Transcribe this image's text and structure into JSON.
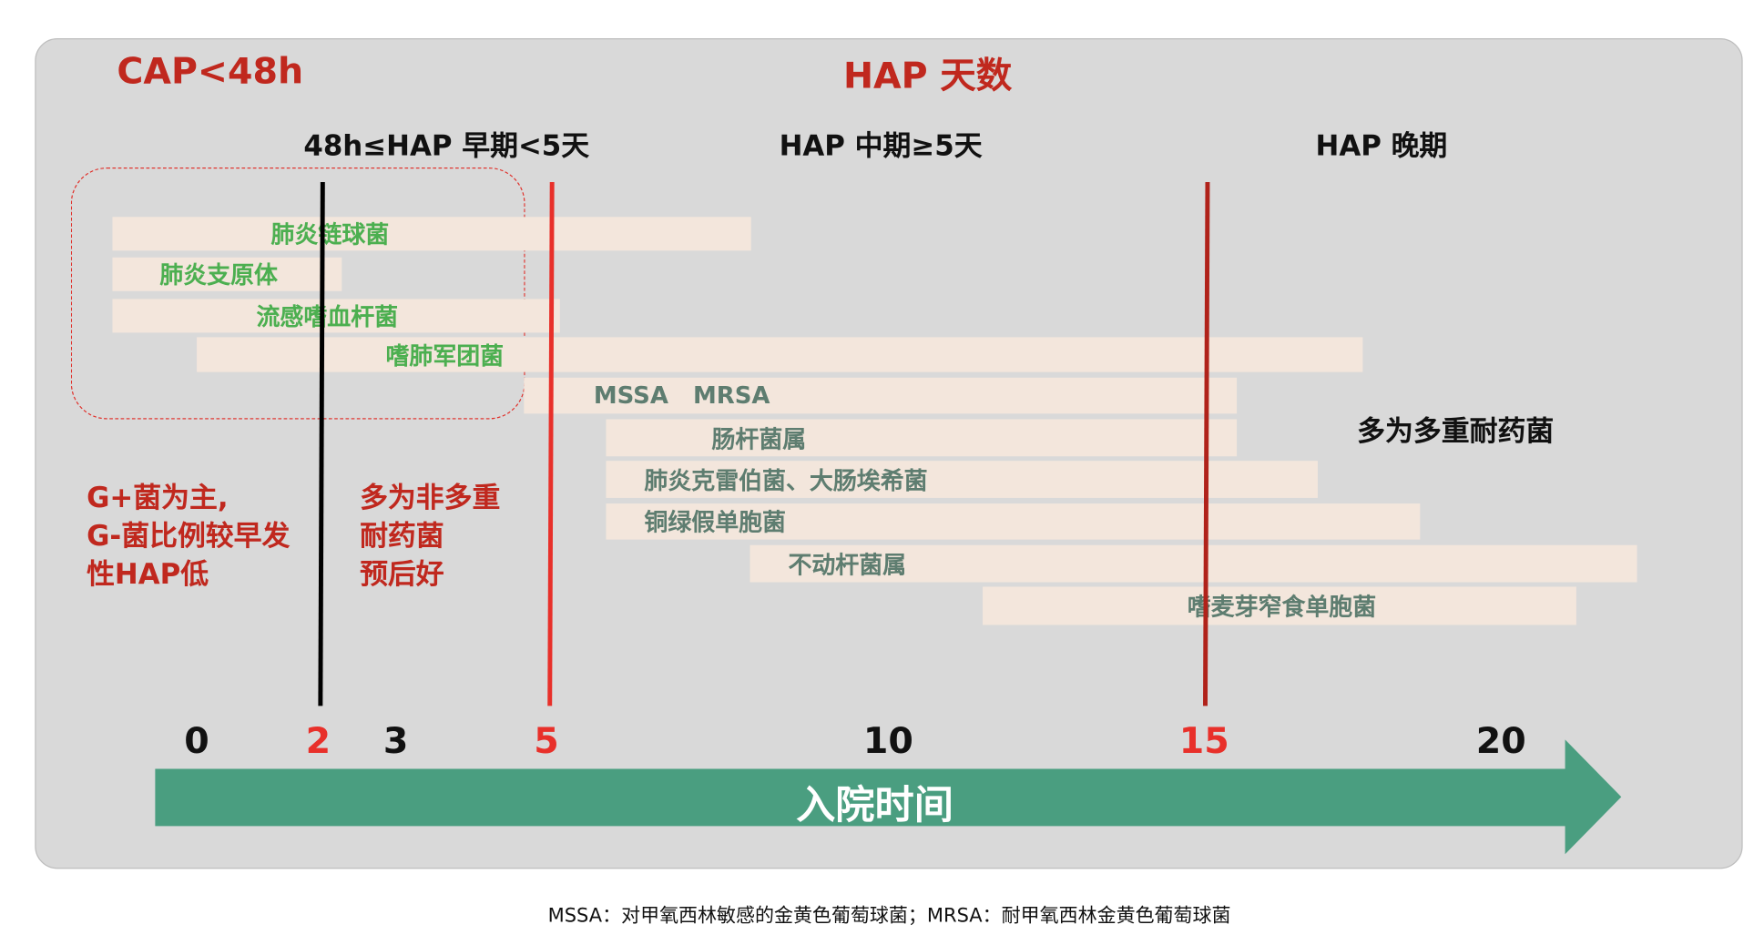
{
  "header": {
    "cap_title": "CAP<48h",
    "hap_title": "HAP 天数"
  },
  "phases": [
    "48h≤HAP 早期<5天",
    "HAP 中期≥5天",
    "HAP 晚期"
  ],
  "bars": [
    {
      "label": "肺炎链球菌",
      "group": "early"
    },
    {
      "label": "肺炎支原体",
      "group": "early"
    },
    {
      "label": "流感嗜血杆菌",
      "group": "early"
    },
    {
      "label": "嗜肺军团菌",
      "group": "early"
    },
    {
      "label": "MSSA   MRSA",
      "group": "late"
    },
    {
      "label": "肠杆菌属",
      "group": "late"
    },
    {
      "label": "肺炎克雷伯菌、大肠埃希菌",
      "group": "late"
    },
    {
      "label": "铜绿假单胞菌",
      "group": "late"
    },
    {
      "label": "不动杆菌属",
      "group": "late"
    },
    {
      "label": "嗜麦芽窄食单胞菌",
      "group": "late"
    }
  ],
  "notes": {
    "cap": [
      "G+菌为主,",
      "G-菌比例较早发",
      "性HAP低"
    ],
    "early": [
      "多为非多重",
      "耐药菌",
      "预后好"
    ],
    "late": "多为多重耐药菌"
  },
  "ticks": [
    {
      "label": "0",
      "highlight": false
    },
    {
      "label": "2",
      "highlight": true
    },
    {
      "label": "3",
      "highlight": false
    },
    {
      "label": "5",
      "highlight": true
    },
    {
      "label": "10",
      "highlight": false
    },
    {
      "label": "15",
      "highlight": true
    },
    {
      "label": "20",
      "highlight": false
    }
  ],
  "axis_label": "入院时间",
  "footer": "MSSA：对甲氧西林敏感的金黄色葡萄球菌；MRSA：耐甲氧西林金黄色葡萄球菌",
  "colors": {
    "panel": "#d9d9d9",
    "bar": "#f3e6dc",
    "early_text": "#4caf50",
    "late_text": "#5e7d70",
    "title_red": "#c0281e",
    "line_red": "#e8302a",
    "line_darkred": "#b0221a",
    "arrow": "#4a9e80"
  }
}
